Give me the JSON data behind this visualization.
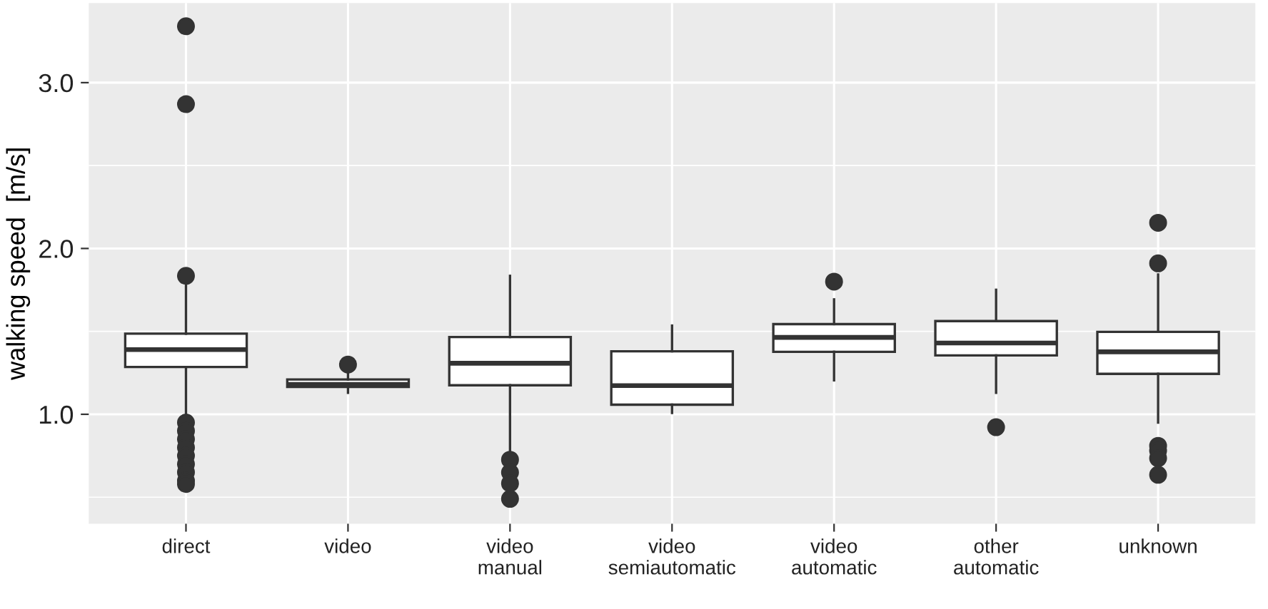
{
  "chart_data": {
    "type": "box",
    "ylabel": "walking speed  [m/s]",
    "categories": [
      "direct",
      "video",
      "video\nmanual",
      "video\nsemiautomatic",
      "video\nautomatic",
      "other\nautomatic",
      "unknown"
    ],
    "boxes": [
      {
        "low": 0.98,
        "q1": 1.285,
        "median": 1.39,
        "q3": 1.486,
        "high": 1.785,
        "outliers": [
          3.34,
          2.87,
          1.835,
          0.95,
          0.9,
          0.85,
          0.8,
          0.75,
          0.7,
          0.65,
          0.6,
          0.58
        ]
      },
      {
        "low": 1.13,
        "q1": 1.165,
        "median": 1.18,
        "q3": 1.21,
        "high": 1.25,
        "outliers": [
          1.3
        ]
      },
      {
        "low": 0.78,
        "q1": 1.175,
        "median": 1.308,
        "q3": 1.466,
        "high": 1.835,
        "outliers": [
          0.726,
          0.649,
          0.583,
          0.49
        ]
      },
      {
        "low": 1.008,
        "q1": 1.058,
        "median": 1.173,
        "q3": 1.38,
        "high": 1.535
      },
      {
        "low": 1.205,
        "q1": 1.377,
        "median": 1.464,
        "q3": 1.544,
        "high": 1.693,
        "outliers": [
          1.8
        ]
      },
      {
        "low": 1.13,
        "q1": 1.355,
        "median": 1.43,
        "q3": 1.562,
        "high": 1.751,
        "outliers": [
          0.922
        ]
      },
      {
        "low": 0.95,
        "q1": 1.244,
        "median": 1.377,
        "q3": 1.497,
        "high": 1.843,
        "outliers": [
          2.155,
          1.91,
          0.81,
          0.78,
          0.735,
          0.635
        ]
      }
    ],
    "color": "#333333",
    "ylim": [
      0.34,
      3.48
    ],
    "yticks": [
      {
        "value": 0.5,
        "label": null
      },
      {
        "value": 1.0,
        "label": "1.0"
      },
      {
        "value": 1.5,
        "label": null
      },
      {
        "value": 2.0,
        "label": "2.0"
      },
      {
        "value": 2.5,
        "label": null
      },
      {
        "value": 3.0,
        "label": "3.0"
      }
    ],
    "grid": true
  }
}
